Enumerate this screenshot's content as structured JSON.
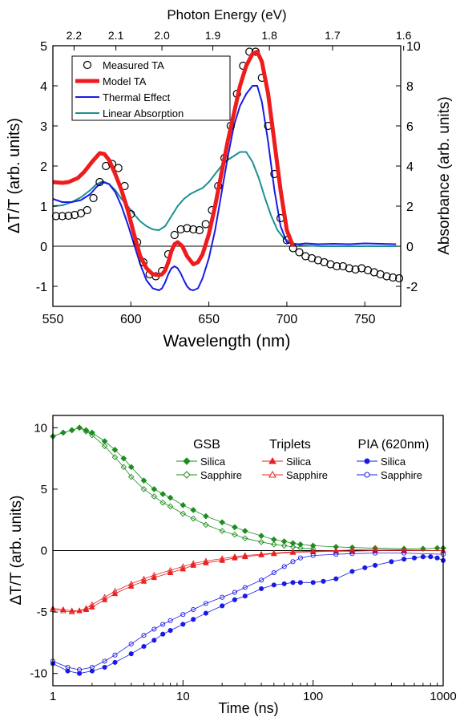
{
  "chart_data": [
    {
      "type": "line",
      "xlabel": "Wavelength (nm)",
      "top_xlabel": "Photon Energy (eV)",
      "ylabel": "ΔT/T (arb. units)",
      "ylabel_right": "Absorbance (arb. units)",
      "xlim": [
        550,
        773
      ],
      "ylim": [
        -1.5,
        5
      ],
      "ylim_right": [
        -3,
        10
      ],
      "x_ticks": [
        "550",
        "600",
        "650",
        "700",
        "750"
      ],
      "y_ticks": [
        "-1",
        "0",
        "1",
        "2",
        "3",
        "4",
        "5"
      ],
      "y_right_ticks": [
        "-2",
        "0",
        "2",
        "4",
        "6",
        "8",
        "10"
      ],
      "top_ticks": [
        "2.2",
        "2.1",
        "2.0",
        "1.9",
        "1.8",
        "1.7",
        "1.6"
      ],
      "top_tick_energies": [
        2.2,
        2.1,
        2.0,
        1.9,
        1.8,
        1.7,
        1.6
      ],
      "zero_line": true,
      "legend_position": "top-left",
      "series": [
        {
          "name": "Measured TA",
          "style": "open-circles",
          "color": "#000000",
          "x": [
            552,
            556,
            560,
            564,
            568,
            572,
            576,
            580,
            584,
            588,
            592,
            596,
            600,
            604,
            608,
            612,
            616,
            620,
            624,
            628,
            632,
            636,
            640,
            644,
            648,
            652,
            656,
            660,
            664,
            668,
            672,
            676,
            680,
            684,
            688,
            692,
            696,
            700,
            704,
            708,
            712,
            716,
            720,
            724,
            728,
            732,
            736,
            740,
            744,
            748,
            752,
            756,
            760,
            764,
            768,
            772
          ],
          "y": [
            0.75,
            0.75,
            0.76,
            0.78,
            0.82,
            0.9,
            1.2,
            1.6,
            2.0,
            2.05,
            1.95,
            1.5,
            0.8,
            0.1,
            -0.4,
            -0.7,
            -0.75,
            -0.62,
            -0.2,
            0.28,
            0.42,
            0.45,
            0.42,
            0.4,
            0.55,
            0.9,
            1.5,
            2.2,
            3.0,
            3.8,
            4.5,
            4.85,
            4.85,
            4.2,
            3.0,
            1.8,
            0.7,
            0.15,
            -0.05,
            -0.15,
            -0.25,
            -0.3,
            -0.35,
            -0.4,
            -0.45,
            -0.5,
            -0.5,
            -0.55,
            -0.58,
            -0.55,
            -0.6,
            -0.65,
            -0.7,
            -0.75,
            -0.78,
            -0.8
          ]
        },
        {
          "name": "Model TA",
          "style": "thick-line",
          "color": "#ee1c1c",
          "x": [
            550,
            556,
            560,
            566,
            570,
            575,
            580,
            583,
            586,
            590,
            594,
            598,
            602,
            606,
            610,
            614,
            618,
            620,
            622,
            624,
            626,
            628,
            630,
            633,
            636,
            640,
            643,
            646,
            650,
            654,
            658,
            662,
            666,
            670,
            674,
            678,
            681,
            684,
            688,
            692,
            696,
            700,
            704
          ],
          "y": [
            1.6,
            1.58,
            1.6,
            1.7,
            1.85,
            2.1,
            2.32,
            2.3,
            2.15,
            1.8,
            1.4,
            0.9,
            0.3,
            -0.25,
            -0.55,
            -0.7,
            -0.72,
            -0.7,
            -0.6,
            -0.4,
            -0.12,
            0.05,
            0.1,
            0.0,
            -0.25,
            -0.45,
            -0.4,
            -0.2,
            0.3,
            1.0,
            1.8,
            2.6,
            3.3,
            4.0,
            4.5,
            4.8,
            4.85,
            4.6,
            3.8,
            2.6,
            1.4,
            0.4,
            0.0
          ]
        },
        {
          "name": "Thermal Effect",
          "style": "line",
          "color": "#1a1ae6",
          "x": [
            550,
            556,
            562,
            568,
            574,
            578,
            582,
            586,
            590,
            594,
            598,
            602,
            606,
            610,
            614,
            618,
            620,
            622,
            624,
            626,
            628,
            630,
            632,
            634,
            636,
            638,
            640,
            643,
            646,
            650,
            654,
            658,
            662,
            666,
            670,
            674,
            678,
            681,
            684,
            688,
            692,
            696,
            700,
            704,
            708,
            712,
            720,
            730,
            740,
            750,
            760,
            770
          ],
          "y": [
            1.18,
            1.1,
            1.1,
            1.15,
            1.3,
            1.48,
            1.6,
            1.55,
            1.35,
            1.0,
            0.55,
            0.05,
            -0.45,
            -0.85,
            -1.05,
            -1.1,
            -1.05,
            -0.9,
            -0.7,
            -0.55,
            -0.5,
            -0.55,
            -0.68,
            -0.85,
            -1.0,
            -1.08,
            -1.1,
            -1.05,
            -0.8,
            -0.3,
            0.4,
            1.3,
            2.2,
            3.0,
            3.5,
            3.8,
            4.0,
            4.0,
            3.6,
            2.6,
            1.4,
            0.5,
            0.1,
            0.06,
            0.05,
            0.07,
            0.05,
            0.06,
            0.05,
            0.07,
            0.06,
            0.05
          ]
        },
        {
          "name": "Linear Absorption",
          "style": "line",
          "color": "#1a9090",
          "x": [
            550,
            556,
            562,
            568,
            574,
            578,
            582,
            586,
            590,
            594,
            598,
            602,
            606,
            610,
            614,
            618,
            622,
            626,
            630,
            634,
            638,
            642,
            646,
            650,
            654,
            658,
            662,
            666,
            670,
            674,
            678,
            682,
            686,
            690,
            694,
            698,
            702,
            706,
            710,
            716,
            722,
            730,
            740,
            750,
            760,
            770
          ],
          "y": [
            1.0,
            1.02,
            1.1,
            1.22,
            1.4,
            1.55,
            1.62,
            1.55,
            1.4,
            1.18,
            1.0,
            0.8,
            0.62,
            0.5,
            0.42,
            0.4,
            0.5,
            0.75,
            1.0,
            1.18,
            1.3,
            1.38,
            1.45,
            1.6,
            1.8,
            2.0,
            2.15,
            2.25,
            2.35,
            2.35,
            2.1,
            1.7,
            1.2,
            0.75,
            0.4,
            0.2,
            0.1,
            0.05,
            0.02,
            0.01,
            0.0,
            0.0,
            0.0,
            0.0,
            0.0,
            0.0
          ]
        }
      ]
    },
    {
      "type": "scatter",
      "xlabel": "Time (ns)",
      "ylabel": "ΔT/T  (arb. units)",
      "x_scale": "log",
      "xlim": [
        1,
        1000
      ],
      "ylim": [
        -11,
        11
      ],
      "x_ticks": [
        "1",
        "10",
        "100",
        "1000"
      ],
      "y_ticks": [
        "-10",
        "-5",
        "0",
        "5",
        "10"
      ],
      "zero_line": true,
      "legend_position": "top-right",
      "legend_groups": [
        "GSB",
        "Triplets",
        "PIA (620nm)"
      ],
      "series": [
        {
          "name": "Silica",
          "group": "GSB",
          "marker": "diamond",
          "filled": true,
          "color": "#1e8c1e",
          "x": [
            1,
            1.2,
            1.4,
            1.6,
            1.8,
            2.0,
            2.5,
            3,
            3.5,
            4,
            5,
            6,
            7,
            8,
            10,
            12,
            15,
            20,
            25,
            30,
            40,
            50,
            60,
            70,
            80,
            100,
            150,
            200,
            300,
            500,
            700,
            900,
            1000
          ],
          "y": [
            9.3,
            9.6,
            9.8,
            10.0,
            9.8,
            9.6,
            8.9,
            8.2,
            7.5,
            6.8,
            5.7,
            5.0,
            4.6,
            4.3,
            3.7,
            3.3,
            2.8,
            2.3,
            1.9,
            1.6,
            1.2,
            0.9,
            0.75,
            0.6,
            0.5,
            0.4,
            0.3,
            0.25,
            0.2,
            0.15,
            0.15,
            0.2,
            0.2
          ]
        },
        {
          "name": "Sapphire",
          "group": "GSB",
          "marker": "diamond",
          "filled": false,
          "color": "#1e8c1e",
          "x": [
            1,
            1.2,
            1.4,
            1.6,
            1.8,
            2.0,
            2.5,
            3,
            3.5,
            4,
            5,
            6,
            7,
            8,
            10,
            12,
            15,
            20,
            25,
            30,
            40,
            50,
            60,
            70,
            80,
            100
          ],
          "y": [
            9.3,
            9.6,
            9.8,
            10.0,
            9.7,
            9.4,
            8.5,
            7.6,
            6.8,
            6.0,
            5.0,
            4.4,
            3.9,
            3.6,
            3.0,
            2.6,
            2.1,
            1.6,
            1.3,
            1.0,
            0.7,
            0.5,
            0.4,
            0.3,
            0.2,
            0.15
          ]
        },
        {
          "name": "Silica",
          "group": "Triplets",
          "marker": "triangle",
          "filled": true,
          "color": "#e82020",
          "x": [
            1,
            1.2,
            1.4,
            1.6,
            1.8,
            2.0,
            2.5,
            3,
            4,
            5,
            6,
            8,
            10,
            12,
            15,
            20,
            25,
            30,
            40,
            50,
            70,
            100,
            150,
            200,
            300,
            500,
            1000
          ],
          "y": [
            -4.7,
            -4.8,
            -4.9,
            -4.9,
            -4.8,
            -4.6,
            -4.0,
            -3.5,
            -2.9,
            -2.5,
            -2.2,
            -1.8,
            -1.5,
            -1.2,
            -1.0,
            -0.8,
            -0.6,
            -0.5,
            -0.35,
            -0.25,
            -0.15,
            -0.1,
            -0.05,
            -0.05,
            0.0,
            0.0,
            0.0
          ]
        },
        {
          "name": "Sapphire",
          "group": "Triplets",
          "marker": "triangle",
          "filled": false,
          "color": "#e82020",
          "x": [
            1,
            1.2,
            1.4,
            1.6,
            1.8,
            2.0,
            2.5,
            3,
            4,
            5,
            6,
            8,
            10,
            12,
            15,
            20,
            25,
            30,
            40,
            50,
            70,
            100,
            150,
            200,
            300,
            500,
            1000
          ],
          "y": [
            -4.8,
            -4.9,
            -5.0,
            -4.9,
            -4.7,
            -4.4,
            -3.8,
            -3.3,
            -2.7,
            -2.3,
            -2.0,
            -1.6,
            -1.3,
            -1.05,
            -0.85,
            -0.65,
            -0.5,
            -0.4,
            -0.3,
            -0.2,
            -0.1,
            -0.05,
            0.0,
            0.05,
            0.1,
            0.05,
            0.0
          ]
        },
        {
          "name": "Silica",
          "group": "PIA (620nm)",
          "marker": "circle",
          "filled": true,
          "color": "#1a1ae6",
          "x": [
            1,
            1.3,
            1.6,
            2,
            2.5,
            3,
            4,
            5,
            6,
            7,
            8,
            10,
            12,
            15,
            20,
            25,
            30,
            40,
            50,
            60,
            70,
            80,
            100,
            120,
            150,
            200,
            250,
            300,
            400,
            500,
            600,
            700,
            800,
            900,
            1000
          ],
          "y": [
            -9.2,
            -9.8,
            -10.0,
            -9.8,
            -9.5,
            -9.1,
            -8.4,
            -7.8,
            -7.3,
            -6.8,
            -6.5,
            -6.0,
            -5.6,
            -5.1,
            -4.5,
            -4.0,
            -3.7,
            -3.1,
            -2.8,
            -2.7,
            -2.6,
            -2.6,
            -2.6,
            -2.5,
            -2.3,
            -1.7,
            -1.4,
            -1.2,
            -0.9,
            -0.7,
            -0.6,
            -0.5,
            -0.5,
            -0.6,
            -0.8
          ]
        },
        {
          "name": "Sapphire",
          "group": "PIA (620nm)",
          "marker": "circle",
          "filled": false,
          "color": "#1a1ae6",
          "x": [
            1,
            1.3,
            1.6,
            2,
            2.5,
            3,
            4,
            5,
            6,
            7,
            8,
            10,
            12,
            15,
            20,
            25,
            30,
            40,
            50,
            60,
            70,
            80,
            100,
            150,
            200,
            300,
            500,
            1000
          ],
          "y": [
            -9.0,
            -9.5,
            -9.7,
            -9.5,
            -9.0,
            -8.5,
            -7.6,
            -6.9,
            -6.4,
            -6.0,
            -5.7,
            -5.2,
            -4.8,
            -4.3,
            -3.8,
            -3.4,
            -3.0,
            -2.4,
            -1.8,
            -1.3,
            -0.9,
            -0.6,
            -0.4,
            -0.3,
            -0.25,
            -0.2,
            -0.2,
            -0.3
          ]
        }
      ]
    }
  ]
}
